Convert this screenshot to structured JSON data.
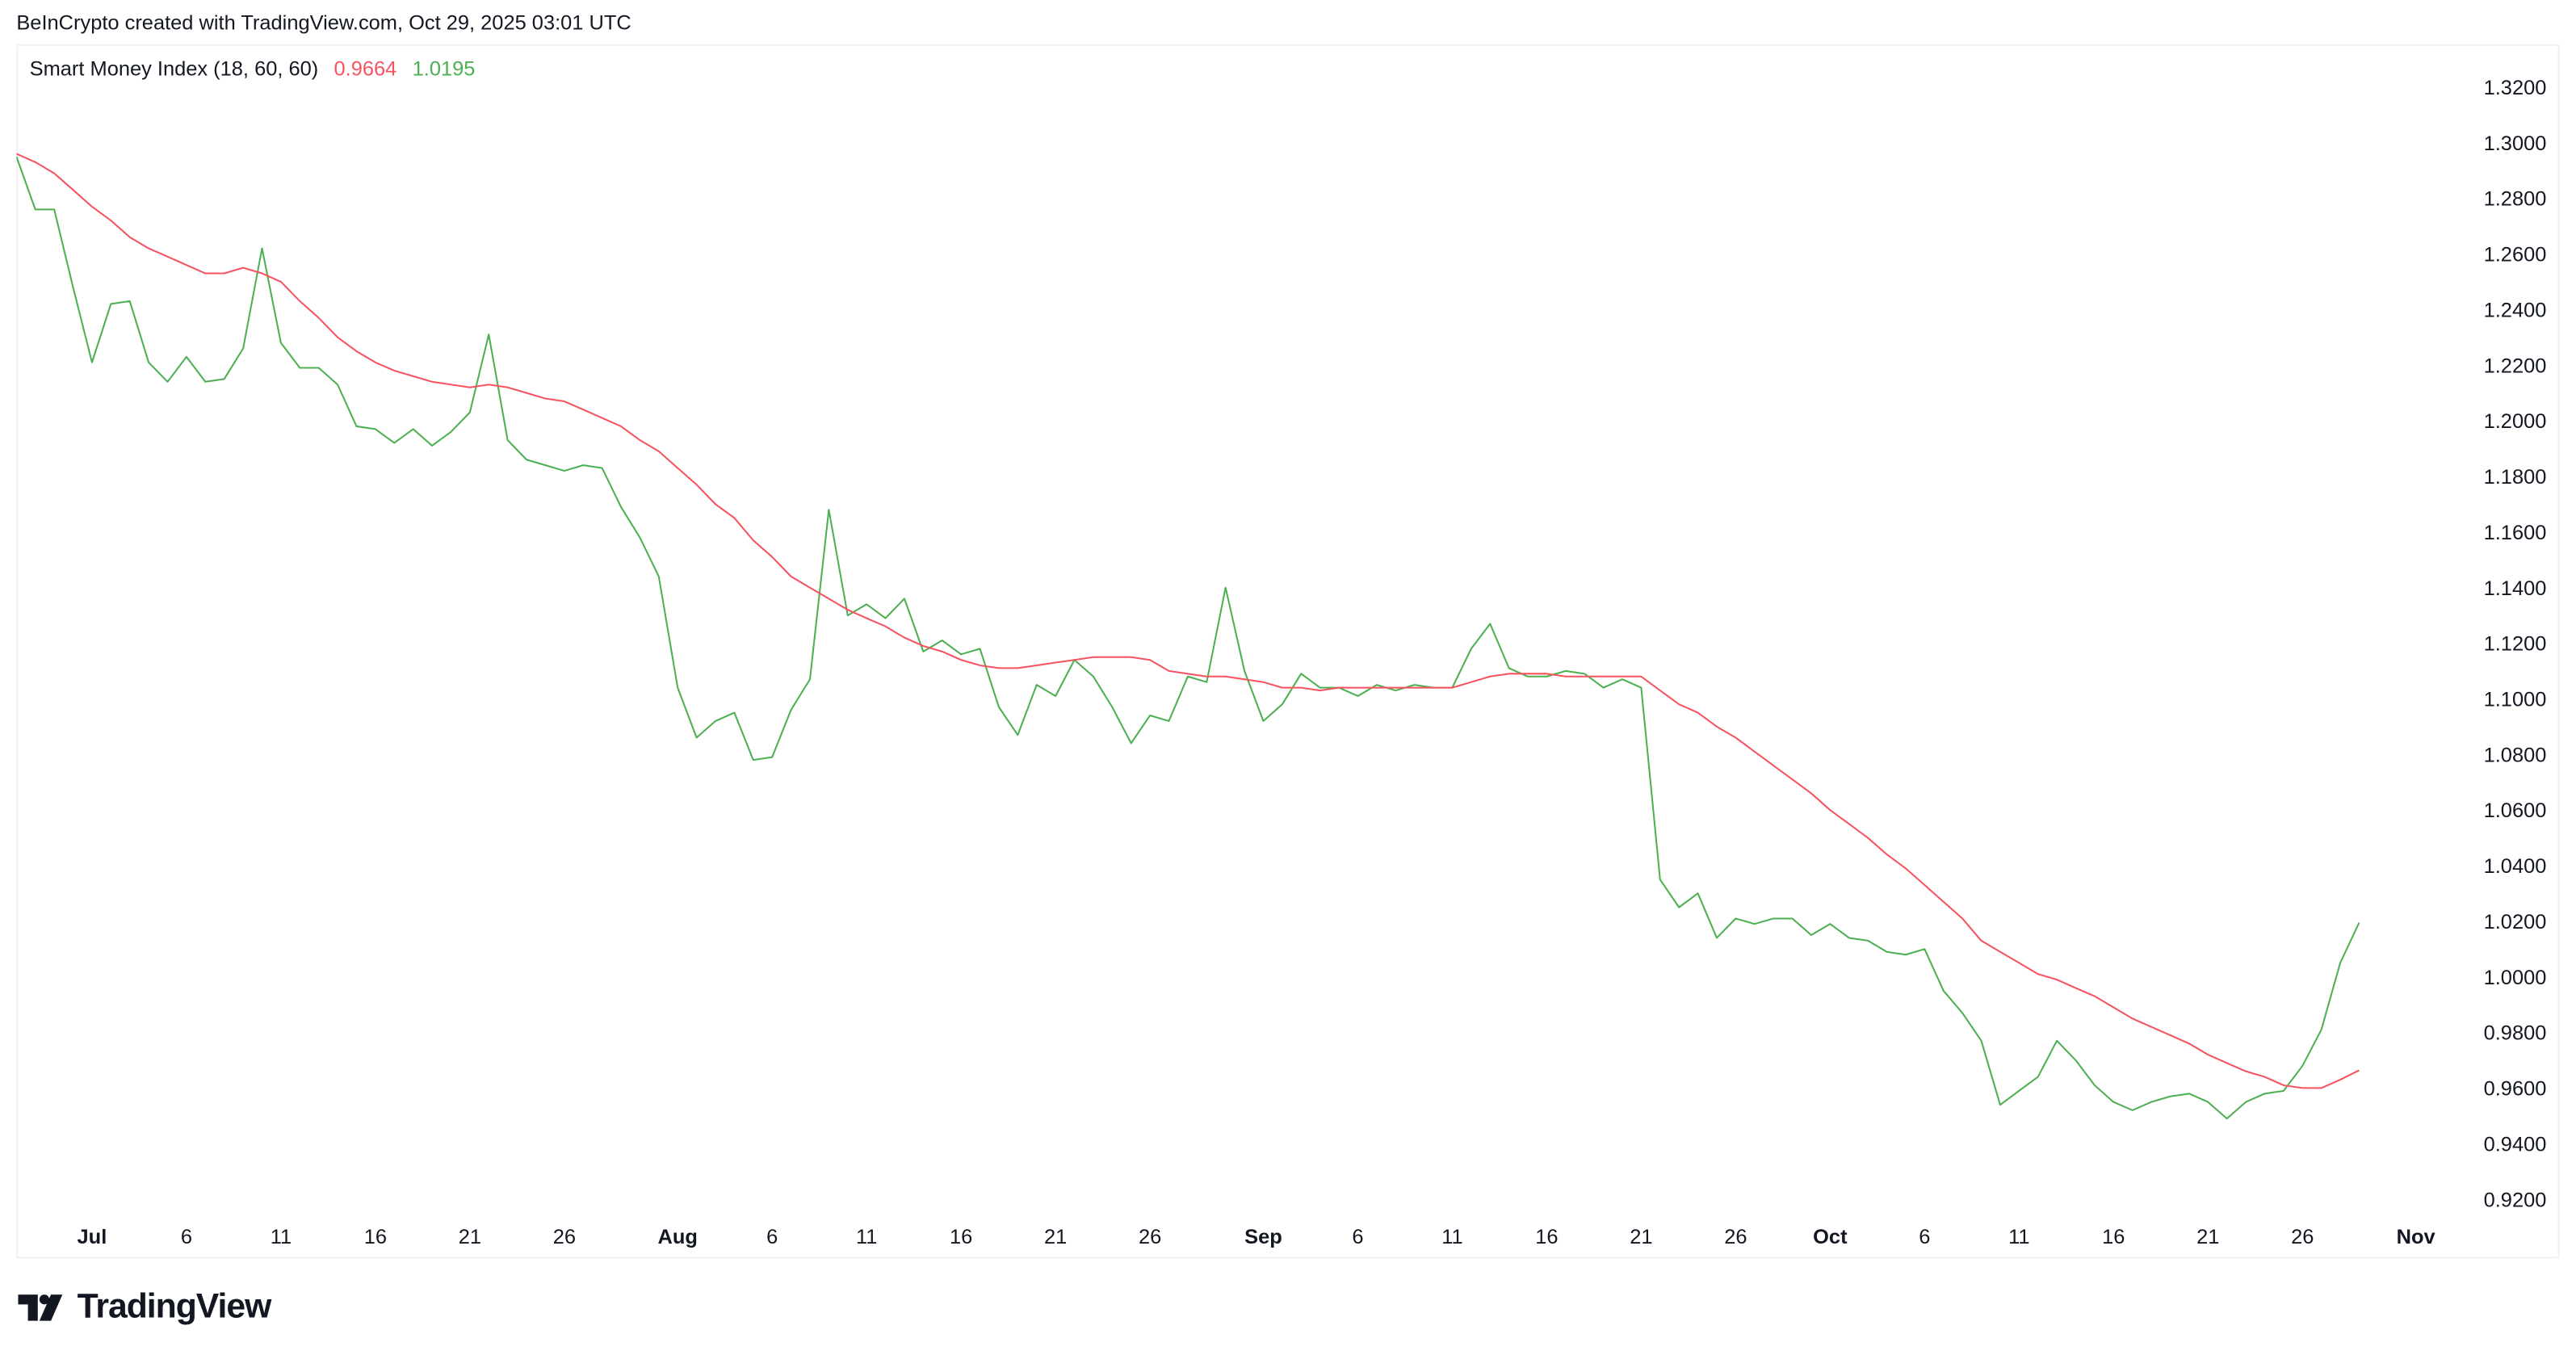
{
  "credit": "BeInCrypto created with TradingView.com, Oct 29, 2025 03:01 UTC",
  "legend": {
    "name": "Smart Money Index (18, 60, 60)",
    "value_red": "0.9664",
    "value_green": "1.0195"
  },
  "logo_text": "TradingView",
  "colors": {
    "red": "#f7525f",
    "green": "#4caf50",
    "text": "#131722"
  },
  "chart_data": {
    "type": "line",
    "title": "Smart Money Index (18, 60, 60)",
    "interval": "1D",
    "x_range": [
      "2025-06-27",
      "2025-10-29"
    ],
    "ylim": [
      0.91,
      1.33
    ],
    "grid": false,
    "legend": "top-left",
    "y_ticks": [
      "1.3200",
      "1.3000",
      "1.2800",
      "1.2600",
      "1.2400",
      "1.2200",
      "1.2000",
      "1.1800",
      "1.1600",
      "1.1400",
      "1.1200",
      "1.1000",
      "1.0800",
      "1.0600",
      "1.0400",
      "1.0200",
      "1.0000",
      "0.9800",
      "0.9600",
      "0.9400",
      "0.9200"
    ],
    "x_ticks": [
      {
        "label": "Jul",
        "date": "2025-07-01",
        "major": true
      },
      {
        "label": "6",
        "date": "2025-07-06"
      },
      {
        "label": "11",
        "date": "2025-07-11"
      },
      {
        "label": "16",
        "date": "2025-07-16"
      },
      {
        "label": "21",
        "date": "2025-07-21"
      },
      {
        "label": "26",
        "date": "2025-07-26"
      },
      {
        "label": "Aug",
        "date": "2025-08-01",
        "major": true
      },
      {
        "label": "6",
        "date": "2025-08-06"
      },
      {
        "label": "11",
        "date": "2025-08-11"
      },
      {
        "label": "16",
        "date": "2025-08-16"
      },
      {
        "label": "21",
        "date": "2025-08-21"
      },
      {
        "label": "26",
        "date": "2025-08-26"
      },
      {
        "label": "Sep",
        "date": "2025-09-01",
        "major": true
      },
      {
        "label": "6",
        "date": "2025-09-06"
      },
      {
        "label": "11",
        "date": "2025-09-11"
      },
      {
        "label": "16",
        "date": "2025-09-16"
      },
      {
        "label": "21",
        "date": "2025-09-21"
      },
      {
        "label": "26",
        "date": "2025-09-26"
      },
      {
        "label": "Oct",
        "date": "2025-10-01",
        "major": true
      },
      {
        "label": "6",
        "date": "2025-10-06"
      },
      {
        "label": "11",
        "date": "2025-10-11"
      },
      {
        "label": "16",
        "date": "2025-10-16"
      },
      {
        "label": "21",
        "date": "2025-10-21"
      },
      {
        "label": "26",
        "date": "2025-10-26"
      },
      {
        "label": "Nov",
        "date": "2025-11-01",
        "major": true
      }
    ],
    "series": [
      {
        "color": "#4caf50",
        "values": [
          1.295,
          1.276,
          1.276,
          1.248,
          1.221,
          1.242,
          1.243,
          1.221,
          1.214,
          1.223,
          1.214,
          1.215,
          1.226,
          1.262,
          1.228,
          1.219,
          1.219,
          1.213,
          1.198,
          1.197,
          1.192,
          1.197,
          1.191,
          1.196,
          1.203,
          1.231,
          1.193,
          1.186,
          1.184,
          1.182,
          1.184,
          1.183,
          1.169,
          1.158,
          1.144,
          1.104,
          1.086,
          1.092,
          1.095,
          1.078,
          1.079,
          1.096,
          1.107,
          1.168,
          1.13,
          1.134,
          1.129,
          1.136,
          1.117,
          1.121,
          1.116,
          1.118,
          1.097,
          1.087,
          1.105,
          1.101,
          1.114,
          1.108,
          1.097,
          1.084,
          1.094,
          1.092,
          1.108,
          1.106,
          1.14,
          1.11,
          1.092,
          1.098,
          1.109,
          1.104,
          1.104,
          1.101,
          1.105,
          1.103,
          1.105,
          1.104,
          1.104,
          1.118,
          1.127,
          1.111,
          1.108,
          1.108,
          1.11,
          1.109,
          1.104,
          1.107,
          1.104,
          1.035,
          1.025,
          1.03,
          1.014,
          1.021,
          1.019,
          1.021,
          1.021,
          1.015,
          1.019,
          1.014,
          1.013,
          1.009,
          1.008,
          1.01,
          0.995,
          0.987,
          0.977,
          0.954,
          0.959,
          0.964,
          0.977,
          0.97,
          0.961,
          0.955,
          0.952,
          0.955,
          0.957,
          0.958,
          0.955,
          0.949,
          0.955,
          0.958,
          0.959,
          0.968,
          0.981,
          1.005,
          1.0195
        ]
      },
      {
        "color": "#f7525f",
        "values": [
          1.296,
          1.293,
          1.289,
          1.283,
          1.277,
          1.272,
          1.266,
          1.262,
          1.259,
          1.256,
          1.253,
          1.253,
          1.255,
          1.253,
          1.25,
          1.243,
          1.237,
          1.23,
          1.225,
          1.221,
          1.218,
          1.216,
          1.214,
          1.213,
          1.212,
          1.213,
          1.212,
          1.21,
          1.208,
          1.207,
          1.204,
          1.201,
          1.198,
          1.193,
          1.189,
          1.183,
          1.177,
          1.17,
          1.165,
          1.157,
          1.151,
          1.144,
          1.14,
          1.136,
          1.132,
          1.129,
          1.126,
          1.122,
          1.119,
          1.117,
          1.114,
          1.112,
          1.111,
          1.111,
          1.112,
          1.113,
          1.114,
          1.115,
          1.115,
          1.115,
          1.114,
          1.11,
          1.109,
          1.108,
          1.108,
          1.107,
          1.106,
          1.104,
          1.104,
          1.103,
          1.104,
          1.104,
          1.104,
          1.104,
          1.104,
          1.104,
          1.104,
          1.106,
          1.108,
          1.109,
          1.109,
          1.109,
          1.108,
          1.108,
          1.108,
          1.108,
          1.108,
          1.103,
          1.098,
          1.095,
          1.09,
          1.086,
          1.081,
          1.076,
          1.071,
          1.066,
          1.06,
          1.055,
          1.05,
          1.044,
          1.039,
          1.033,
          1.027,
          1.021,
          1.013,
          1.009,
          1.005,
          1.001,
          0.999,
          0.996,
          0.993,
          0.989,
          0.985,
          0.982,
          0.979,
          0.976,
          0.972,
          0.969,
          0.966,
          0.964,
          0.961,
          0.96,
          0.96,
          0.963,
          0.9664
        ]
      }
    ]
  }
}
